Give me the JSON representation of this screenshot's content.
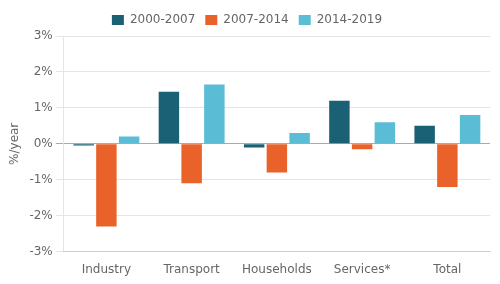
{
  "chart_data": {
    "type": "bar",
    "categories": [
      "Industry",
      "Transport",
      "Households",
      "Services*",
      "Total"
    ],
    "series": [
      {
        "name": "2000-2007",
        "color": "#1a6175",
        "values": [
          -0.05,
          1.45,
          -0.1,
          1.2,
          0.5
        ]
      },
      {
        "name": "2007-2014",
        "color": "#e8622a",
        "values": [
          -2.3,
          -1.1,
          -0.8,
          -0.15,
          -1.2
        ]
      },
      {
        "name": "2014-2019",
        "color": "#5bbcd6",
        "values": [
          0.2,
          1.65,
          0.3,
          0.6,
          0.8
        ]
      }
    ],
    "ylabel": "%/year",
    "ylim": [
      -3.0,
      3.0
    ],
    "yticks": [
      {
        "value": -3,
        "label": "-3%"
      },
      {
        "value": -2,
        "label": "-2%"
      },
      {
        "value": -1,
        "label": "-1%"
      },
      {
        "value": 0,
        "label": "0%"
      },
      {
        "value": 1,
        "label": "1%"
      },
      {
        "value": 2,
        "label": "2%"
      },
      {
        "value": 3,
        "label": "3%"
      }
    ],
    "grid": true,
    "legend": "top"
  }
}
